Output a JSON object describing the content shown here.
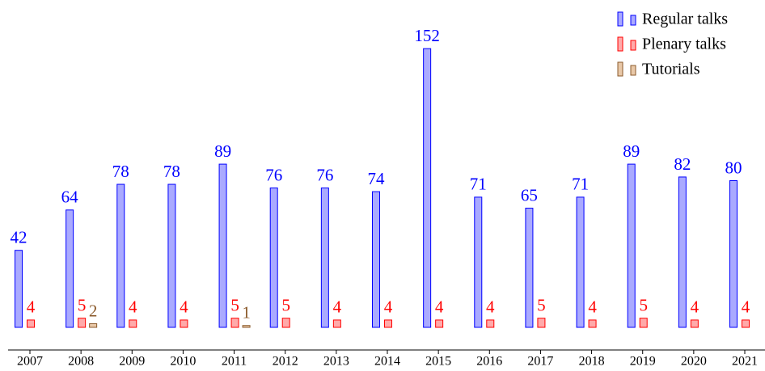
{
  "chart_data": {
    "type": "bar",
    "categories": [
      "2007",
      "2008",
      "2009",
      "2010",
      "2011",
      "2012",
      "2013",
      "2014",
      "2015",
      "2016",
      "2017",
      "2018",
      "2019",
      "2020",
      "2021"
    ],
    "series": [
      {
        "name": "Regular talks",
        "color": "#0000ff",
        "fill": "#aaaaff",
        "values": [
          42,
          64,
          78,
          78,
          89,
          76,
          76,
          74,
          152,
          71,
          65,
          71,
          89,
          82,
          80
        ]
      },
      {
        "name": "Plenary talks",
        "color": "#ff0000",
        "fill": "#ffaaaa",
        "values": [
          4,
          5,
          4,
          4,
          5,
          5,
          4,
          4,
          4,
          4,
          5,
          4,
          5,
          4,
          4
        ]
      },
      {
        "name": "Tutorials",
        "color": "#8b5a2b",
        "fill": "#e8c8a8",
        "values": [
          null,
          2,
          null,
          null,
          1,
          null,
          null,
          null,
          null,
          null,
          null,
          null,
          null,
          null,
          null
        ]
      }
    ],
    "ylim": [
      0,
      160
    ],
    "legend": "upper right"
  }
}
